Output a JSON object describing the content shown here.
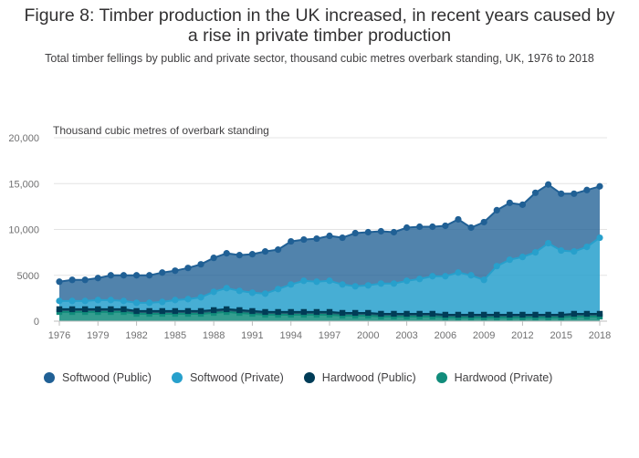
{
  "title": "Figure 8: Timber production in the UK increased, in recent years caused by a rise in private timber production",
  "subtitle": "Total timber fellings by public and private sector, thousand cubic metres overbark standing, UK, 1976 to 2018",
  "colors": {
    "softwood_public": "#206095",
    "softwood_private": "#27A0CC",
    "hardwood_public": "#003C57",
    "hardwood_private": "#118C7B"
  },
  "chart_data": {
    "type": "area",
    "stacked": true,
    "ylabel": "Thousand cubic metres of overbark standing",
    "ylim": [
      0,
      20000
    ],
    "yticks": [
      0,
      5000,
      10000,
      15000,
      20000
    ],
    "ytick_labels": [
      "0",
      "5000",
      "10,000",
      "15,000",
      "20,000"
    ],
    "xticks": [
      1976,
      1979,
      1982,
      1985,
      1988,
      1991,
      1994,
      1997,
      2000,
      2003,
      2006,
      2009,
      2012,
      2015,
      2018
    ],
    "x": [
      1976,
      1977,
      1978,
      1979,
      1980,
      1981,
      1982,
      1983,
      1984,
      1985,
      1986,
      1987,
      1988,
      1989,
      1990,
      1991,
      1992,
      1993,
      1994,
      1995,
      1996,
      1997,
      1998,
      1999,
      2000,
      2001,
      2002,
      2003,
      2004,
      2005,
      2006,
      2007,
      2008,
      2009,
      2010,
      2011,
      2012,
      2013,
      2014,
      2015,
      2016,
      2017,
      2018
    ],
    "series": [
      {
        "name": "Hardwood (Private)",
        "key": "hardwood_private",
        "values": [
          1000,
          1000,
          1000,
          1000,
          1000,
          1000,
          800,
          800,
          800,
          800,
          800,
          800,
          900,
          1000,
          900,
          800,
          700,
          700,
          700,
          700,
          700,
          700,
          600,
          600,
          600,
          500,
          500,
          500,
          500,
          500,
          400,
          400,
          400,
          400,
          400,
          400,
          400,
          400,
          400,
          400,
          500,
          500,
          500
        ]
      },
      {
        "name": "Hardwood (Public)",
        "key": "hardwood_public",
        "values": [
          300,
          300,
          300,
          300,
          300,
          300,
          300,
          300,
          300,
          300,
          300,
          300,
          300,
          300,
          300,
          300,
          300,
          300,
          300,
          300,
          300,
          300,
          300,
          300,
          300,
          300,
          300,
          300,
          300,
          300,
          300,
          300,
          300,
          300,
          300,
          300,
          300,
          300,
          300,
          300,
          300,
          300,
          300
        ]
      },
      {
        "name": "Softwood (Private)",
        "key": "softwood_private",
        "values": [
          900,
          900,
          900,
          1000,
          1000,
          900,
          900,
          900,
          1000,
          1200,
          1300,
          1500,
          2000,
          2300,
          2100,
          2000,
          2000,
          2500,
          3000,
          3400,
          3300,
          3400,
          3100,
          2900,
          3000,
          3300,
          3300,
          3600,
          3800,
          4100,
          4200,
          4600,
          4300,
          3800,
          5300,
          6000,
          6300,
          6800,
          7800,
          7000,
          6800,
          7300,
          8300
        ]
      },
      {
        "name": "Softwood (Public)",
        "key": "softwood_public",
        "values": [
          2100,
          2300,
          2300,
          2400,
          2700,
          2800,
          3000,
          3000,
          3200,
          3200,
          3400,
          3600,
          3700,
          3800,
          3900,
          4200,
          4600,
          4300,
          4700,
          4500,
          4700,
          4900,
          5100,
          5800,
          5800,
          5700,
          5600,
          5800,
          5700,
          5400,
          5500,
          5800,
          5200,
          6300,
          6100,
          6200,
          5700,
          6500,
          6400,
          6200,
          6300,
          6200,
          5600
        ]
      }
    ],
    "legend": [
      "Softwood (Public)",
      "Softwood (Private)",
      "Hardwood (Public)",
      "Hardwood (Private)"
    ],
    "legend_position": "bottom"
  }
}
